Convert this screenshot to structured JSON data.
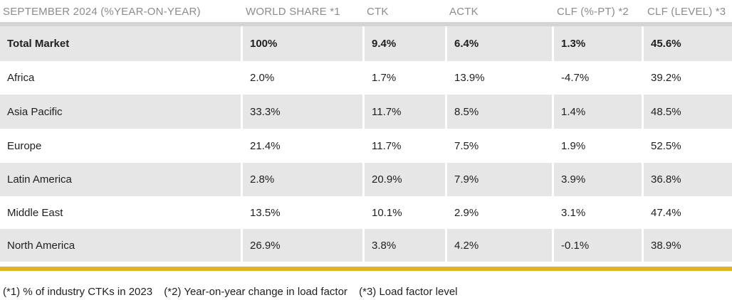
{
  "table": {
    "headers": [
      "SEPTEMBER 2024 (%YEAR-ON-YEAR)",
      "WORLD SHARE *1",
      "CTK",
      "ACTK",
      "CLF (%-PT) *2",
      "CLF (LEVEL) *3"
    ],
    "rows": [
      [
        "Total Market",
        "100%",
        "9.4%",
        "6.4%",
        "1.3%",
        "45.6%"
      ],
      [
        "Africa",
        "2.0%",
        "1.7%",
        "13.9%",
        "-4.7%",
        "39.2%"
      ],
      [
        "Asia Pacific",
        "33.3%",
        "11.7%",
        "8.5%",
        "1.4%",
        "48.5%"
      ],
      [
        "Europe",
        "21.4%",
        "11.7%",
        "7.5%",
        "1.9%",
        "52.5%"
      ],
      [
        "Latin America",
        "2.8%",
        "20.9%",
        "7.9%",
        "3.9%",
        "36.8%"
      ],
      [
        "Middle East",
        "13.5%",
        "10.1%",
        "2.9%",
        "3.1%",
        "47.4%"
      ],
      [
        "North America",
        "26.9%",
        "3.8%",
        "4.2%",
        "-0.1%",
        "38.9%"
      ]
    ]
  },
  "footnotes": [
    "(*1) % of industry CTKs in 2023",
    "(*2) Year-on-year change in load factor",
    "(*3) Load factor level"
  ],
  "colors": {
    "row_shade": "#e6e6e6",
    "header_text": "#8c8c8c",
    "accent_bar": "#e0b224"
  }
}
